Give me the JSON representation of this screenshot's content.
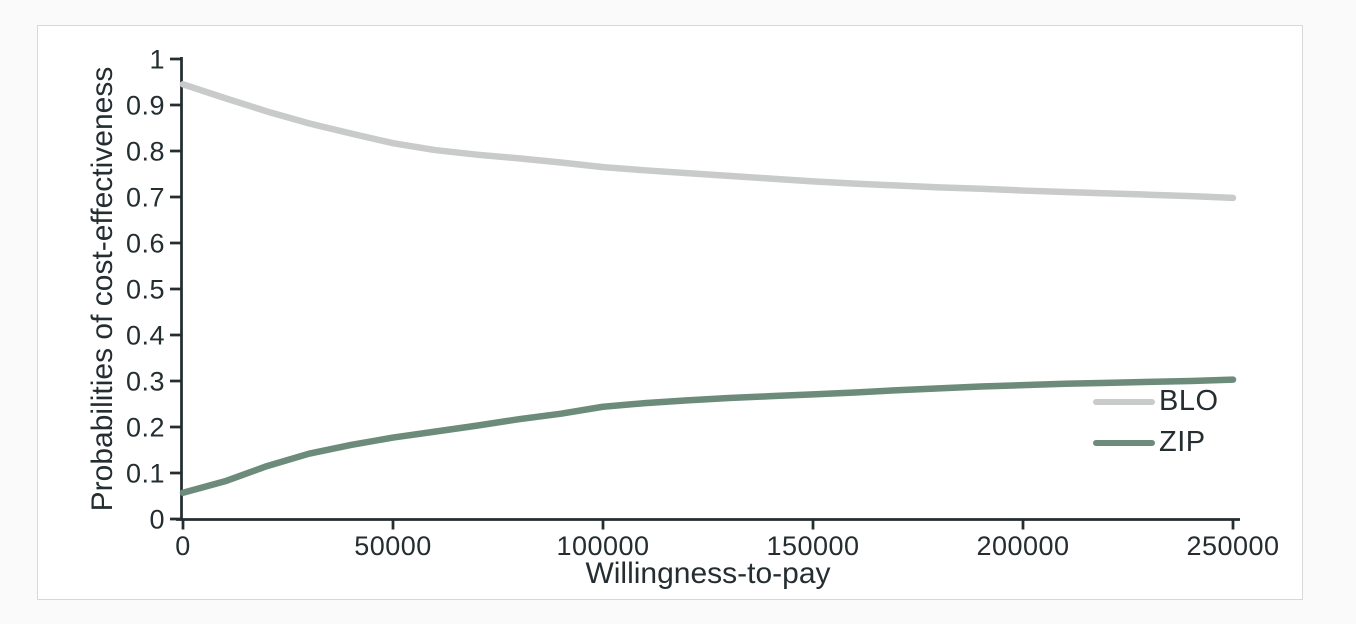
{
  "page": {
    "background_color": "#fafafa",
    "frame_background_color": "#ffffff",
    "frame_border_color": "#d8d8d8"
  },
  "chart_data": {
    "type": "line",
    "title": "",
    "xlabel": "Willingness-to-pay",
    "ylabel": "Probabilities of cost-effectiveness",
    "xlim": [
      0,
      250000
    ],
    "ylim": [
      0,
      1
    ],
    "grid": false,
    "legend_position": "right-middle",
    "axis_color": "#242d30",
    "text_color": "#242d30",
    "x_ticks": [
      0,
      50000,
      100000,
      150000,
      200000,
      250000
    ],
    "x_tick_labels": [
      "0",
      "50000",
      "100000",
      "150000",
      "200000",
      "250000"
    ],
    "y_ticks": [
      0,
      0.1,
      0.2,
      0.3,
      0.4,
      0.5,
      0.6,
      0.7,
      0.8,
      0.9,
      1
    ],
    "y_tick_labels": [
      "0",
      "0.1",
      "0.2",
      "0.3",
      "0.4",
      "0.5",
      "0.6",
      "0.7",
      "0.8",
      "0.9",
      "1"
    ],
    "x": [
      0,
      10000,
      20000,
      30000,
      40000,
      50000,
      60000,
      70000,
      80000,
      90000,
      100000,
      110000,
      120000,
      130000,
      140000,
      150000,
      160000,
      170000,
      180000,
      190000,
      200000,
      210000,
      220000,
      230000,
      240000,
      250000
    ],
    "series": [
      {
        "name": "BLO",
        "color": "#c9cbca",
        "values": [
          0.945,
          0.915,
          0.886,
          0.86,
          0.838,
          0.817,
          0.802,
          0.792,
          0.784,
          0.775,
          0.765,
          0.758,
          0.752,
          0.746,
          0.74,
          0.734,
          0.729,
          0.725,
          0.721,
          0.718,
          0.714,
          0.711,
          0.708,
          0.705,
          0.702,
          0.698
        ]
      },
      {
        "name": "ZIP",
        "color": "#6c8b7b",
        "values": [
          0.057,
          0.082,
          0.115,
          0.142,
          0.161,
          0.177,
          0.19,
          0.203,
          0.217,
          0.229,
          0.244,
          0.252,
          0.258,
          0.263,
          0.267,
          0.271,
          0.275,
          0.28,
          0.284,
          0.288,
          0.291,
          0.294,
          0.296,
          0.298,
          0.3,
          0.303
        ]
      }
    ]
  }
}
